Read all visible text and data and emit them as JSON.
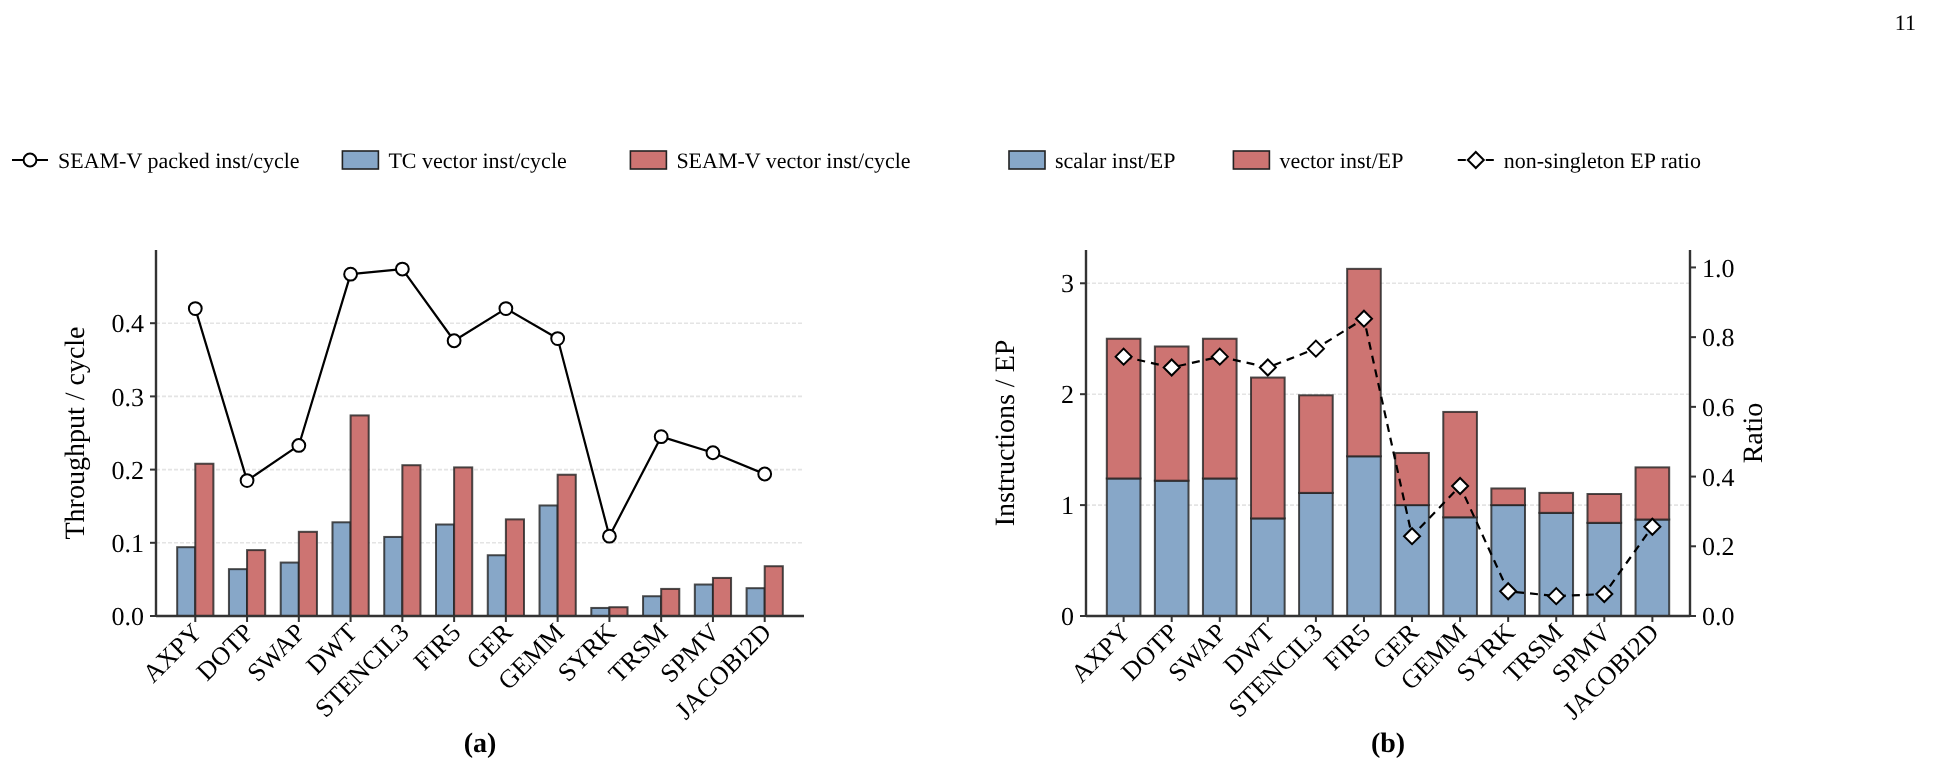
{
  "chart_data": [
    {
      "type": "bar",
      "ylabel": "Throughput / cycle",
      "categories": [
        "AXPY",
        "DOTP",
        "SWAP",
        "DWT",
        "STENCIL3",
        "FIR5",
        "GER",
        "GEMM",
        "SYRK",
        "TRSM",
        "SPMV",
        "JACOBI2D"
      ],
      "ylim": [
        0,
        0.5
      ],
      "yticks": [
        {
          "value": 0,
          "label": "0.0"
        },
        {
          "value": 0.1,
          "label": "0.1"
        },
        {
          "value": 0.2,
          "label": "0.2"
        },
        {
          "value": 0.3,
          "label": "0.3"
        },
        {
          "value": 0.4,
          "label": "0.4"
        }
      ],
      "grid": "y",
      "legend": "top",
      "annotations": [
        "(a)"
      ],
      "series": [
        {
          "name": "SEAM-V packed inst/cycle",
          "type": "line",
          "color": "#000000",
          "marker": "circle",
          "line_style": "solid",
          "values": [
            0.42,
            0.185,
            0.233,
            0.467,
            0.474,
            0.376,
            0.42,
            0.379,
            0.109,
            0.245,
            0.223,
            0.194
          ]
        },
        {
          "name": "TC vector inst/cycle",
          "color": "#87a7c8",
          "values": [
            0.094,
            0.064,
            0.073,
            0.128,
            0.108,
            0.125,
            0.083,
            0.151,
            0.011,
            0.027,
            0.043,
            0.038
          ]
        },
        {
          "name": "SEAM-V vector inst/cycle",
          "color": "#cd7472",
          "values": [
            0.208,
            0.09,
            0.115,
            0.274,
            0.206,
            0.203,
            0.132,
            0.193,
            0.012,
            0.037,
            0.052,
            0.068
          ]
        }
      ]
    },
    {
      "type": "bar",
      "stacked": true,
      "ylabel": "Instructions / EP",
      "y2label": "Ratio",
      "categories": [
        "AXPY",
        "DOTP",
        "SWAP",
        "DWT",
        "STENCIL3",
        "FIR5",
        "GER",
        "GEMM",
        "SYRK",
        "TRSM",
        "SPMV",
        "JACOBI2D"
      ],
      "ylim": [
        0,
        3.3
      ],
      "yticks": [
        0,
        1,
        2,
        3
      ],
      "y2lim": [
        0,
        1.05
      ],
      "y2ticks": [
        {
          "value": 0,
          "label": "0.0"
        },
        {
          "value": 0.2,
          "label": "0.2"
        },
        {
          "value": 0.4,
          "label": "0.4"
        },
        {
          "value": 0.6,
          "label": "0.6"
        },
        {
          "value": 0.8,
          "label": "0.8"
        },
        {
          "value": 1,
          "label": "1.0"
        }
      ],
      "grid": "y",
      "legend": "top",
      "annotations": [
        "(b)",
        "11"
      ],
      "series": [
        {
          "name": "scalar inst/EP",
          "color": "#87a7c8",
          "values": [
            1.24,
            1.22,
            1.24,
            0.88,
            1.11,
            1.44,
            1.0,
            0.89,
            1.0,
            0.93,
            0.84,
            0.87
          ]
        },
        {
          "name": "vector inst/EP",
          "color": "#cd7472",
          "values": [
            1.26,
            1.21,
            1.26,
            1.27,
            0.88,
            1.69,
            0.47,
            0.95,
            0.15,
            0.18,
            0.26,
            0.47
          ]
        },
        {
          "name": "non-singleton EP ratio",
          "type": "line",
          "axis": "y2",
          "color": "#000000",
          "marker": "diamond",
          "line_style": "dashed",
          "values": [
            0.744,
            0.713,
            0.744,
            0.713,
            0.767,
            0.853,
            0.229,
            0.373,
            0.071,
            0.057,
            0.063,
            0.256
          ]
        }
      ]
    }
  ]
}
